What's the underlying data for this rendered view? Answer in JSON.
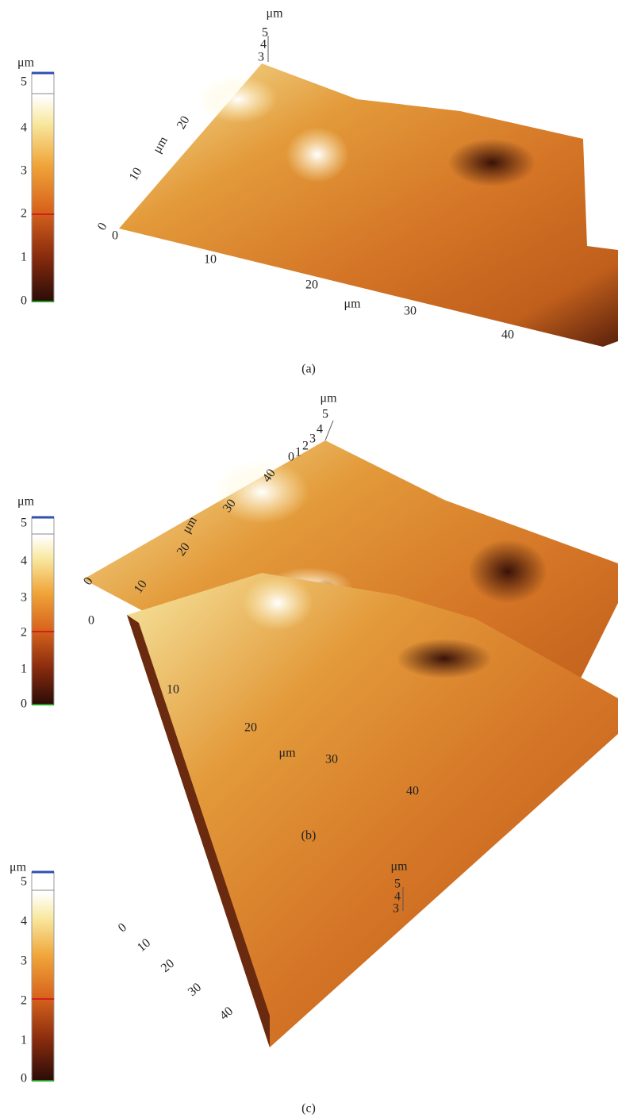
{
  "panels": [
    {
      "colorbar": {
        "unit": "μm",
        "ticks": [
          "0",
          "1",
          "2",
          "3",
          "4",
          "5"
        ]
      },
      "z_axis": {
        "unit": "μm",
        "ticks": [
          "3",
          "4",
          "5"
        ]
      },
      "y_axis": {
        "unit": "μm",
        "ticks": [
          "0",
          "10",
          "20"
        ]
      },
      "x_axis": {
        "unit": "μm",
        "ticks": [
          "0",
          "10",
          "20",
          "30",
          "40"
        ]
      },
      "caption": "(a)"
    },
    {
      "colorbar": {
        "unit": "μm",
        "ticks": [
          "0",
          "1",
          "2",
          "3",
          "4",
          "5"
        ]
      },
      "z_axis": {
        "unit": "μm",
        "ticks": [
          "0",
          "1",
          "2",
          "3",
          "4",
          "5"
        ]
      },
      "y_axis": {
        "unit": "μm",
        "ticks": [
          "0",
          "10",
          "20",
          "30",
          "40"
        ]
      },
      "x_axis": {
        "unit": "μm",
        "ticks": [
          "0",
          "10",
          "20",
          "30",
          "40"
        ]
      },
      "caption": "(b)"
    },
    {
      "colorbar": {
        "unit": "μm",
        "ticks": [
          "0",
          "1",
          "2",
          "3",
          "4",
          "5"
        ]
      },
      "z_axis": {
        "unit": "μm",
        "ticks": [
          "3",
          "4",
          "5"
        ]
      },
      "y_axis": {
        "ticks": [
          "0",
          "10",
          "20",
          "30",
          "40"
        ]
      },
      "caption": "(c)"
    }
  ]
}
